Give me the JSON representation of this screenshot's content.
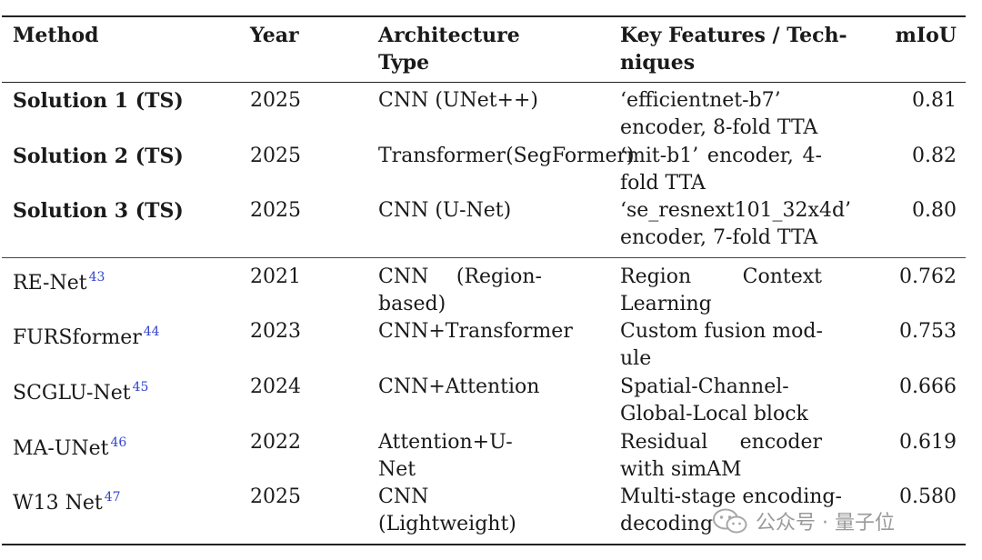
{
  "table": {
    "headers": {
      "method": "Method",
      "year": "Year",
      "arch_l1": "Architecture",
      "arch_l2": "Type",
      "feat_l1": "Key Features / Tech-",
      "feat_l2": "niques",
      "miou": "mIoU"
    },
    "ts_rows": [
      {
        "method": "Solution 1 (TS)",
        "year": "2025",
        "arch_l1": "CNN (UNet++)",
        "arch_l2": "",
        "feat_l1": "‘efficientnet-b7’",
        "feat_l2": "encoder, 8-fold TTA",
        "miou": "0.81"
      },
      {
        "method": "Solution 2 (TS)",
        "year": "2025",
        "arch_l1": "Transformer(SegFormer)",
        "arch_l2": "",
        "feat_l1a": "‘mit-b1’",
        "feat_l1b": "encoder,",
        "feat_l1c": "4-",
        "feat_l2": "fold TTA",
        "miou": "0.82"
      },
      {
        "method": "Solution 3 (TS)",
        "year": "2025",
        "arch_l1": "CNN (U-Net)",
        "arch_l2": "",
        "feat_l1": "‘se_resnext101_32x4d’",
        "feat_l2": "encoder, 7-fold TTA",
        "miou": "0.80"
      }
    ],
    "lit_rows": [
      {
        "method": "RE-Net",
        "ref": "43",
        "year": "2021",
        "arch_l1a": "CNN",
        "arch_l1b": "(Region-",
        "arch_l2": "based)",
        "feat_l1a": "Region",
        "feat_l1b": "Context",
        "feat_l2": "Learning",
        "miou": "0.762"
      },
      {
        "method": "FURSformer",
        "ref": "44",
        "year": "2023",
        "arch_l1": "CNN+Transformer",
        "feat_l1": "Custom fusion mod-",
        "feat_l2": "ule",
        "miou": "0.753"
      },
      {
        "method": "SCGLU-Net",
        "ref": "45",
        "year": "2024",
        "arch_l1": "CNN+Attention",
        "feat_l1": "Spatial-Channel-",
        "feat_l2": "Global-Local block",
        "miou": "0.666"
      },
      {
        "method": "MA-UNet",
        "ref": "46",
        "year": "2022",
        "arch_l1": "Attention+U-",
        "arch_l2": "Net",
        "feat_l1a": "Residual",
        "feat_l1b": "encoder",
        "feat_l2": "with simAM",
        "miou": "0.619"
      },
      {
        "method": "W13 Net",
        "ref": "47",
        "year": "2025",
        "arch_l1": "CNN",
        "arch_l2": "(Lightweight)",
        "feat_l1": "Multi-stage encoding-",
        "feat_l2": "decoding",
        "miou": "0.580"
      }
    ]
  },
  "watermark": {
    "text": "公众号 · 量子位",
    "icon": "wechat-icon"
  },
  "colors": {
    "text": "#1a1a1a",
    "reference": "#3344cc",
    "watermark": "#9a9a9a"
  }
}
